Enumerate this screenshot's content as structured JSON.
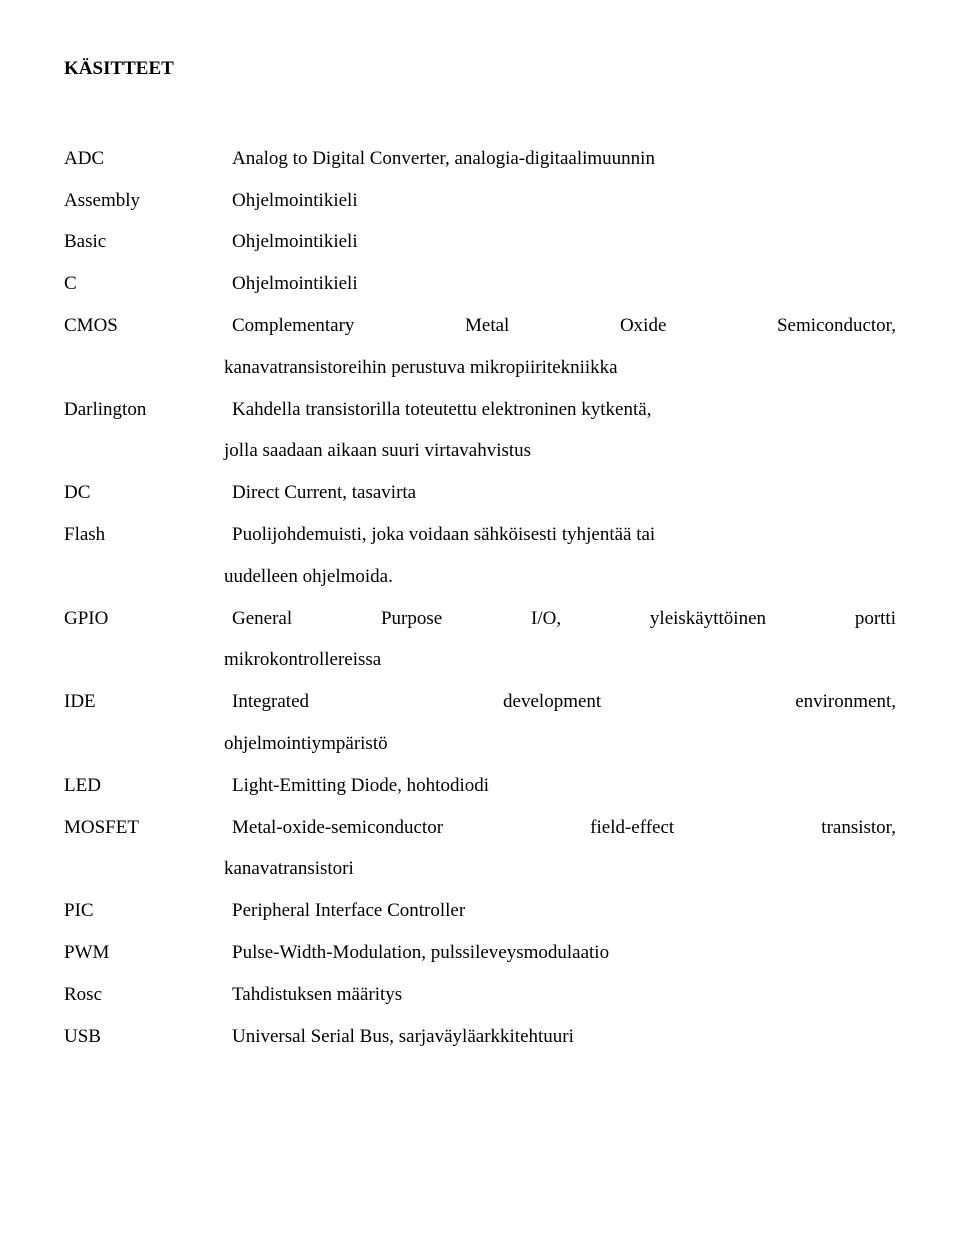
{
  "title": "KÄSITTEET",
  "font_family": "Palatino Linotype",
  "text_color": "#000000",
  "background_color": "#ffffff",
  "entries": {
    "adc": {
      "term": "ADC",
      "def": "Analog to Digital Converter, analogia-digitaalimuunnin"
    },
    "assembly": {
      "term": "Assembly",
      "def": "Ohjelmointikieli"
    },
    "basic": {
      "term": "Basic",
      "def": "Ohjelmointikieli"
    },
    "c": {
      "term": "C",
      "def": "Ohjelmointikieli"
    },
    "cmos": {
      "term": "CMOS",
      "line1": "Complementary Metal Oxide Semiconductor,",
      "line2": "kanavatransistoreihin perustuva mikropiiritekniikka"
    },
    "darlington": {
      "term": "Darlington",
      "line1": "Kahdella transistorilla toteutettu elektroninen kytkentä,",
      "line2": "jolla saadaan aikaan suuri virtavahvistus"
    },
    "dc": {
      "term": "DC",
      "def": "Direct Current, tasavirta"
    },
    "flash": {
      "term": "Flash",
      "line1": "Puolijohdemuisti, joka voidaan sähköisesti tyhjentää tai",
      "line2": "uudelleen ohjelmoida."
    },
    "gpio": {
      "term": "GPIO",
      "line1": "General Purpose I/O, yleiskäyttöinen portti",
      "line2": "mikrokontrollereissa"
    },
    "ide": {
      "term": "IDE",
      "line1": "Integrated development environment,",
      "line2": "ohjelmointiympäristö"
    },
    "led": {
      "term": "LED",
      "def": "Light-Emitting Diode, hohtodiodi"
    },
    "mosfet": {
      "term": "MOSFET",
      "line1": "Metal-oxide-semiconductor field-effect transistor,",
      "line2": "kanavatransistori"
    },
    "pic": {
      "term": "PIC",
      "def": "Peripheral Interface Controller"
    },
    "pwm": {
      "term": "PWM",
      "def": "Pulse-Width-Modulation, pulssileveysmodulaatio"
    },
    "rosc": {
      "term": "Rosc",
      "def": "Tahdistuksen määritys"
    },
    "usb": {
      "term": "USB",
      "def": "Universal Serial Bus, sarjaväyläarkkitehtuuri"
    }
  }
}
